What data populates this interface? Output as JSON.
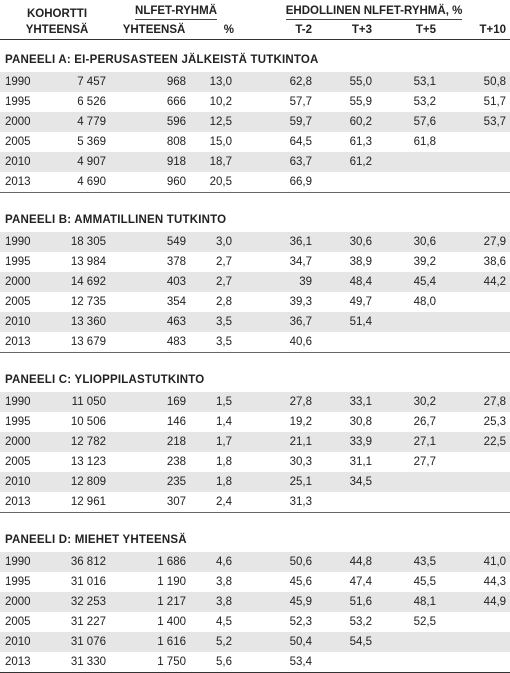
{
  "header": {
    "kohortti": "KOHORTTI",
    "kohortti_yht": "YHTEENSÄ",
    "nlfet": "NLFET-RYHMÄ",
    "nlfet_yht": "YHTEENSÄ",
    "nlfet_pct": "%",
    "ehdollinen": "EHDOLLINEN NLFET-RYHMÄ, %",
    "t_minus2": "T-2",
    "t_plus3": "T+3",
    "t_plus5": "T+5",
    "t_plus10": "T+10"
  },
  "panels": [
    {
      "title": "PANEELI A: EI-PERUSASTEEN JÄLKEISTÄ TUTKINTOA",
      "rows": [
        [
          "1990",
          "7 457",
          "968",
          "13,0",
          "62,8",
          "55,0",
          "53,1",
          "50,8"
        ],
        [
          "1995",
          "6 526",
          "666",
          "10,2",
          "57,7",
          "55,9",
          "53,2",
          "51,7"
        ],
        [
          "2000",
          "4 779",
          "596",
          "12,5",
          "59,7",
          "60,2",
          "57,6",
          "53,7"
        ],
        [
          "2005",
          "5 369",
          "808",
          "15,0",
          "64,5",
          "61,3",
          "61,8",
          ""
        ],
        [
          "2010",
          "4 907",
          "918",
          "18,7",
          "63,7",
          "61,2",
          "",
          ""
        ],
        [
          "2013",
          "4 690",
          "960",
          "20,5",
          "66,9",
          "",
          "",
          ""
        ]
      ]
    },
    {
      "title": "PANEELI B: AMMATILLINEN TUTKINTO",
      "rows": [
        [
          "1990",
          "18 305",
          "549",
          "3,0",
          "36,1",
          "30,6",
          "30,6",
          "27,9"
        ],
        [
          "1995",
          "13 984",
          "378",
          "2,7",
          "34,7",
          "38,9",
          "39,2",
          "38,6"
        ],
        [
          "2000",
          "14 692",
          "403",
          "2,7",
          "39",
          "48,4",
          "45,4",
          "44,2"
        ],
        [
          "2005",
          "12 735",
          "354",
          "2,8",
          "39,3",
          "49,7",
          "48,0",
          ""
        ],
        [
          "2010",
          "13 360",
          "463",
          "3,5",
          "36,7",
          "51,4",
          "",
          ""
        ],
        [
          "2013",
          "13 679",
          "483",
          "3,5",
          "40,6",
          "",
          "",
          ""
        ]
      ]
    },
    {
      "title": "PANEELI C: YLIOPPILASTUTKINTO",
      "rows": [
        [
          "1990",
          "11 050",
          "169",
          "1,5",
          "27,8",
          "33,1",
          "30,2",
          "27,8"
        ],
        [
          "1995",
          "10 506",
          "146",
          "1,4",
          "19,2",
          "30,8",
          "26,7",
          "25,3"
        ],
        [
          "2000",
          "12 782",
          "218",
          "1,7",
          "21,1",
          "33,9",
          "27,1",
          "22,5"
        ],
        [
          "2005",
          "13 123",
          "238",
          "1,8",
          "30,3",
          "31,1",
          "27,7",
          ""
        ],
        [
          "2010",
          "12 809",
          "235",
          "1,8",
          "25,1",
          "34,5",
          "",
          ""
        ],
        [
          "2013",
          "12 961",
          "307",
          "2,4",
          "31,3",
          "",
          "",
          ""
        ]
      ]
    },
    {
      "title": "PANEELI D: MIEHET YHTEENSÄ",
      "rows": [
        [
          "1990",
          "36 812",
          "1 686",
          "4,6",
          "50,6",
          "44,8",
          "43,5",
          "41,0"
        ],
        [
          "1995",
          "31 016",
          "1 190",
          "3,8",
          "45,6",
          "47,4",
          "45,5",
          "44,3"
        ],
        [
          "2000",
          "32 253",
          "1 217",
          "3,8",
          "45,9",
          "51,6",
          "48,1",
          "44,9"
        ],
        [
          "2005",
          "31 227",
          "1 400",
          "4,5",
          "52,3",
          "53,2",
          "52,5",
          ""
        ],
        [
          "2010",
          "31 076",
          "1 616",
          "5,2",
          "50,4",
          "54,5",
          "",
          ""
        ],
        [
          "2013",
          "31 330",
          "1 750",
          "5,6",
          "53,4",
          "",
          "",
          ""
        ]
      ]
    }
  ]
}
